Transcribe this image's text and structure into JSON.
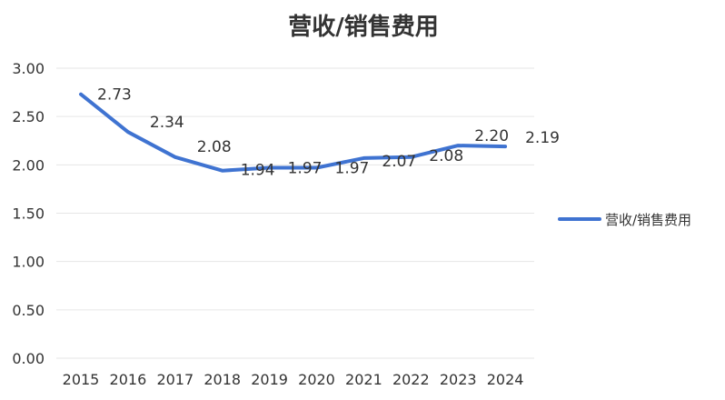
{
  "chart_data": {
    "type": "line",
    "title": "营收/销售费用",
    "xlabel": "",
    "ylabel": "",
    "categories": [
      "2015",
      "2016",
      "2017",
      "2018",
      "2019",
      "2020",
      "2021",
      "2022",
      "2023",
      "2024"
    ],
    "series": [
      {
        "name": "营收/销售费用",
        "values": [
          2.73,
          2.34,
          2.08,
          1.94,
          1.97,
          1.97,
          2.07,
          2.08,
          2.2,
          2.19
        ],
        "color": "#3f73d1"
      }
    ],
    "ylim": [
      0,
      3
    ],
    "yticks": [
      "0.00",
      "0.50",
      "1.00",
      "1.50",
      "2.00",
      "2.50",
      "3.00"
    ],
    "data_labels": [
      "2.73",
      "2.34",
      "2.08",
      "1.94",
      "1.97",
      "1.97",
      "2.07",
      "2.08",
      "2.20",
      "2.19"
    ],
    "grid": "horizontal",
    "legend": "right"
  }
}
